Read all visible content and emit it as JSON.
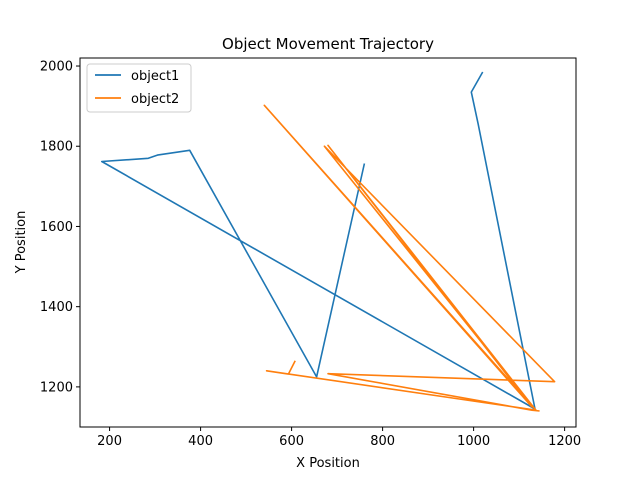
{
  "chart_data": {
    "type": "line",
    "title": "Object Movement Trajectory",
    "xlabel": "X Position",
    "ylabel": "Y Position",
    "xlim": [
      135,
      1225
    ],
    "ylim": [
      1100,
      2020
    ],
    "xticks": [
      200,
      400,
      600,
      800,
      1000,
      1200
    ],
    "yticks": [
      1200,
      1400,
      1600,
      1800,
      2000
    ],
    "legend_position": "top-left",
    "series": [
      {
        "name": "object1",
        "color": "#1f77b4",
        "points": [
          [
            1020,
            1985
          ],
          [
            995,
            1935
          ],
          [
            1010,
            1855
          ],
          [
            1135,
            1145
          ],
          [
            183,
            1762
          ],
          [
            285,
            1770
          ],
          [
            305,
            1778
          ],
          [
            376,
            1790
          ],
          [
            655,
            1225
          ],
          [
            760,
            1757
          ]
        ]
      },
      {
        "name": "object2",
        "color": "#ff7f0e",
        "points": [
          [
            608,
            1265
          ],
          [
            593,
            1232
          ],
          [
            545,
            1240
          ],
          [
            1137,
            1142
          ],
          [
            540,
            1902
          ],
          [
            1128,
            1150
          ],
          [
            680,
            1802
          ],
          [
            1135,
            1145
          ],
          [
            672,
            1800
          ],
          [
            1178,
            1213
          ],
          [
            680,
            1233
          ],
          [
            1128,
            1142
          ],
          [
            1145,
            1140
          ]
        ]
      }
    ]
  }
}
